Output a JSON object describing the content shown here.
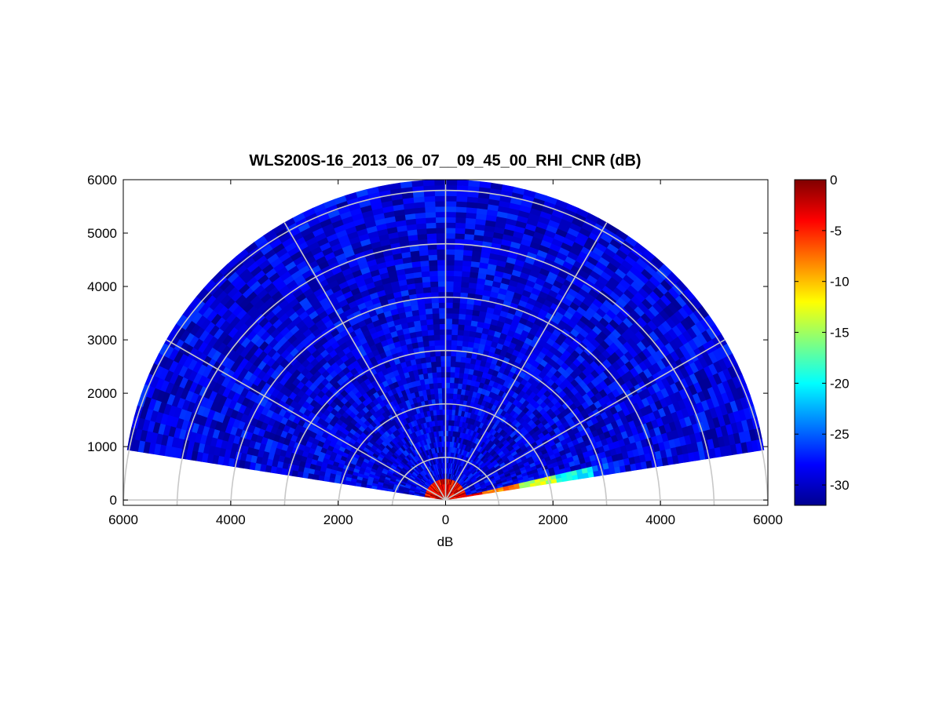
{
  "chart_data": {
    "type": "heatmap",
    "subtype": "polar-rhi",
    "title": "WLS200S-16_2013_06_07__09_45_00_RHI_CNR (dB)",
    "xlabel": "dB",
    "ylabel": "",
    "x_ticks": [
      "6000",
      "4000",
      "2000",
      "0",
      "2000",
      "4000",
      "6000"
    ],
    "x_tick_values": [
      -6000,
      -4000,
      -2000,
      0,
      2000,
      4000,
      6000
    ],
    "y_ticks": [
      "0",
      "1000",
      "2000",
      "3000",
      "4000",
      "5000",
      "6000"
    ],
    "y_tick_values": [
      0,
      1000,
      2000,
      3000,
      4000,
      5000,
      6000
    ],
    "xlim": [
      -6000,
      6000
    ],
    "ylim": [
      -100,
      6000
    ],
    "grid": true,
    "range_rings": [
      1000,
      2000,
      3000,
      4000,
      5000,
      6000
    ],
    "spoke_angles_deg": [
      0,
      30,
      60,
      90,
      120,
      150,
      180
    ],
    "max_range": 6000,
    "scan_elevation_range_deg": [
      9,
      171
    ],
    "colorbar": {
      "location": "right",
      "colormap": "jet",
      "ticks": [
        "0",
        "-5",
        "-10",
        "-15",
        "-20",
        "-25",
        "-30"
      ],
      "tick_values": [
        0,
        -5,
        -10,
        -15,
        -20,
        -25,
        -30
      ],
      "clim": [
        -32,
        0
      ]
    },
    "field": {
      "background_cnr_db": -29,
      "near_range_cnr_db": -3,
      "low_elevation_right_band_cnr_db": [
        -3,
        -8,
        -14,
        -20,
        -26
      ]
    }
  }
}
